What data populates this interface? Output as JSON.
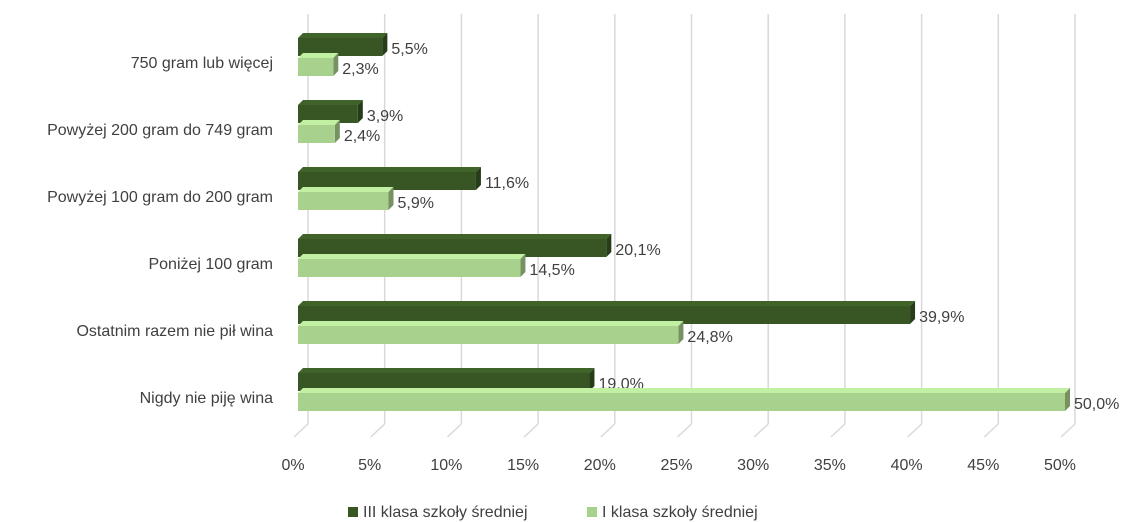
{
  "chart_data": {
    "type": "bar",
    "orientation": "horizontal",
    "categories": [
      "750 gram lub więcej",
      "Powyżej 200 gram do 749 gram",
      "Powyżej 100 gram do 200 gram",
      "Poniżej 100 gram",
      "Ostatnim razem nie pił wina",
      "Nigdy nie piję wina"
    ],
    "series": [
      {
        "name": "III klasa szkoły średniej",
        "color": "#375623",
        "values": [
          5.5,
          3.9,
          11.6,
          20.1,
          39.9,
          19.0
        ],
        "value_labels": [
          "5,5%",
          "3,9%",
          "11,6%",
          "20,1%",
          "39,9%",
          "19,0%"
        ]
      },
      {
        "name": "I klasa szkoły średniej",
        "color": "#a9d18e",
        "values": [
          2.3,
          2.4,
          5.9,
          14.5,
          24.8,
          50.0
        ],
        "value_labels": [
          "2,3%",
          "2,4%",
          "5,9%",
          "14,5%",
          "24,8%",
          "50,0%"
        ]
      }
    ],
    "xlim": [
      0,
      50
    ],
    "xticks": [
      {
        "value": 0,
        "label": "0%"
      },
      {
        "value": 5,
        "label": "5%"
      },
      {
        "value": 10,
        "label": "10%"
      },
      {
        "value": 15,
        "label": "15%"
      },
      {
        "value": 20,
        "label": "20%"
      },
      {
        "value": 25,
        "label": "25%"
      },
      {
        "value": 30,
        "label": "30%"
      },
      {
        "value": 35,
        "label": "35%"
      },
      {
        "value": 40,
        "label": "40%"
      },
      {
        "value": 45,
        "label": "45%"
      },
      {
        "value": 50,
        "label": "50%"
      }
    ],
    "grid": true,
    "legend": "bottom"
  }
}
